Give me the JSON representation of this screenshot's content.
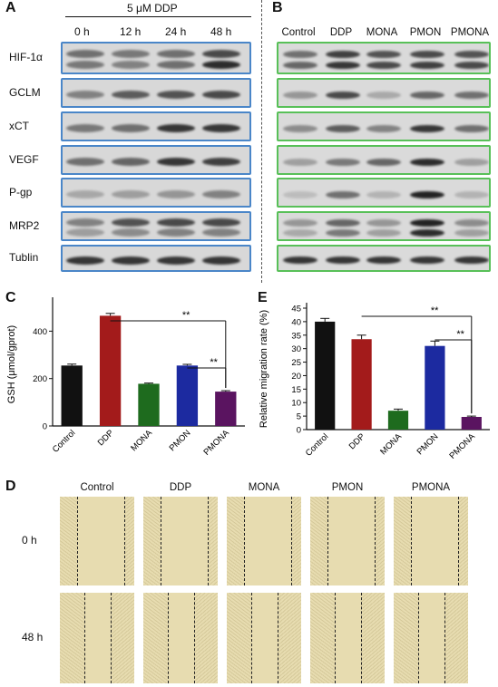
{
  "panel_letters": {
    "a": "A",
    "b": "B",
    "c": "C",
    "d": "D",
    "e": "E"
  },
  "panel_a": {
    "treatment": "5 μM DDP",
    "times": [
      "0 h",
      "12 h",
      "24 h",
      "48 h"
    ],
    "proteins": [
      "HIF-1α",
      "GCLM",
      "xCT",
      "VEGF",
      "P-gp",
      "MRP2",
      "Tublin"
    ]
  },
  "panel_b": {
    "groups": [
      "Control",
      "DDP",
      "MONA",
      "PMON",
      "PMONA"
    ]
  },
  "chart_data": [
    {
      "type": "bar",
      "panel": "C",
      "categories": [
        "Control",
        "DDP",
        "MONA",
        "PMON",
        "PMONA"
      ],
      "values": [
        255,
        465,
        178,
        255,
        145
      ],
      "errors": [
        6,
        10,
        3,
        5,
        4
      ],
      "colors": [
        "#111111",
        "#a31b1b",
        "#1e6b1e",
        "#1c2aa0",
        "#5a1460"
      ],
      "ylabel": "GSH (μmol/gprot)",
      "yticks": [
        0,
        200,
        400
      ],
      "ylim": [
        0,
        520
      ],
      "significance": [
        {
          "from": 1,
          "to": 4,
          "label": "**"
        },
        {
          "from": 3,
          "to": 4,
          "label": "**"
        }
      ]
    },
    {
      "type": "bar",
      "panel": "E",
      "categories": [
        "Control",
        "DDP",
        "MONA",
        "PMON",
        "PMONA"
      ],
      "values": [
        40,
        33.5,
        7,
        31,
        4.7
      ],
      "errors": [
        1.2,
        1.5,
        0.6,
        1.8,
        0.3
      ],
      "colors": [
        "#111111",
        "#a31b1b",
        "#1e6b1e",
        "#1c2aa0",
        "#5a1460"
      ],
      "ylabel": "Relative migration rate (%)",
      "yticks": [
        0,
        5,
        10,
        15,
        20,
        25,
        30,
        35,
        40,
        45
      ],
      "ylim": [
        0,
        45
      ],
      "significance": [
        {
          "from": 1,
          "to": 4,
          "label": "**"
        },
        {
          "from": 3,
          "to": 4,
          "label": "**"
        }
      ]
    }
  ],
  "panel_d": {
    "groups": [
      "Control",
      "DDP",
      "MONA",
      "PMON",
      "PMONA"
    ],
    "times": [
      "0 h",
      "48 h"
    ]
  }
}
